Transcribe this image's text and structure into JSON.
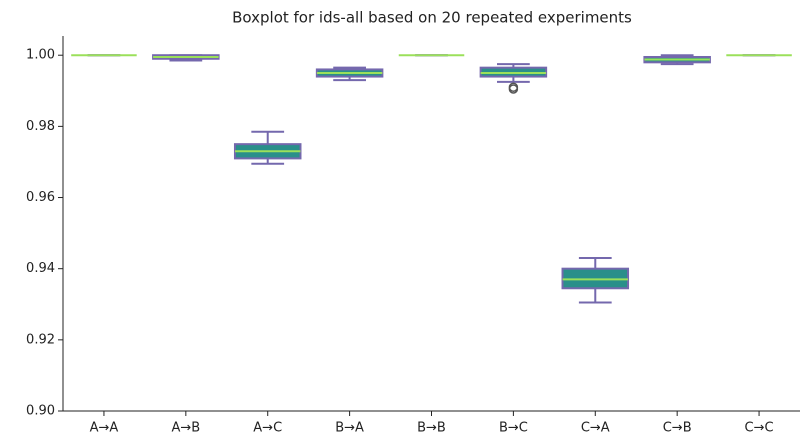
{
  "chart_data": {
    "type": "box",
    "title": "Boxplot for ids-all based on 20 repeated experiments",
    "categories": [
      "A→A",
      "A→B",
      "A→C",
      "B→A",
      "B→B",
      "B→C",
      "C→A",
      "C→B",
      "C→C"
    ],
    "boxes": [
      {
        "low": 1.0,
        "q1": 1.0,
        "median": 1.0,
        "q3": 1.0,
        "high": 1.0,
        "outliers": []
      },
      {
        "low": 0.9985,
        "q1": 0.999,
        "median": 0.9995,
        "q3": 1.0,
        "high": 1.0,
        "outliers": []
      },
      {
        "low": 0.9695,
        "q1": 0.971,
        "median": 0.973,
        "q3": 0.975,
        "high": 0.9785,
        "outliers": []
      },
      {
        "low": 0.993,
        "q1": 0.994,
        "median": 0.995,
        "q3": 0.996,
        "high": 0.9965,
        "outliers": []
      },
      {
        "low": 1.0,
        "q1": 1.0,
        "median": 1.0,
        "q3": 1.0,
        "high": 1.0,
        "outliers": []
      },
      {
        "low": 0.9925,
        "q1": 0.994,
        "median": 0.995,
        "q3": 0.9965,
        "high": 0.9975,
        "outliers": [
          0.991,
          0.9905
        ]
      },
      {
        "low": 0.9305,
        "q1": 0.9345,
        "median": 0.937,
        "q3": 0.94,
        "high": 0.943,
        "outliers": []
      },
      {
        "low": 0.9975,
        "q1": 0.998,
        "median": 0.9988,
        "q3": 0.9995,
        "high": 1.0,
        "outliers": []
      },
      {
        "low": 1.0,
        "q1": 1.0,
        "median": 1.0,
        "q3": 1.0,
        "high": 1.0,
        "outliers": []
      }
    ],
    "box_color": "#2a8f8a",
    "edge_color": "#7468ad",
    "median_color": "#9be05a",
    "ylim": [
      0.9,
      1.0054
    ],
    "yticks": [
      {
        "value": 0.9,
        "label": "0.90"
      },
      {
        "value": 0.92,
        "label": "0.92"
      },
      {
        "value": 0.94,
        "label": "0.94"
      },
      {
        "value": 0.96,
        "label": "0.96"
      },
      {
        "value": 0.98,
        "label": "0.98"
      },
      {
        "value": 1.0,
        "label": "1.00"
      }
    ]
  }
}
